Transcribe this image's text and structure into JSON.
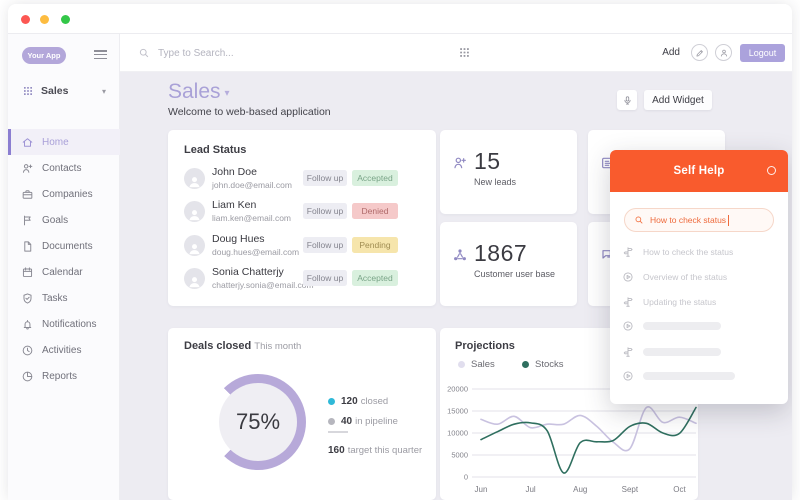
{
  "window": {
    "traffic_lights": [
      "#fc5753",
      "#fdbc40",
      "#33c748"
    ]
  },
  "sidebar": {
    "logo": "Your App",
    "workspace": {
      "label": "Sales",
      "caret": "▾"
    },
    "items": [
      {
        "label": "Home",
        "icon": "#i-home",
        "active": true
      },
      {
        "label": "Contacts",
        "icon": "#i-person-plus"
      },
      {
        "label": "Companies",
        "icon": "#i-briefcase"
      },
      {
        "label": "Goals",
        "icon": "#i-flag"
      },
      {
        "label": "Documents",
        "icon": "#i-doc"
      },
      {
        "label": "Calendar",
        "icon": "#i-cal"
      },
      {
        "label": "Tasks",
        "icon": "#i-shield"
      },
      {
        "label": "Notifications",
        "icon": "#i-bell"
      },
      {
        "label": "Activities",
        "icon": "#i-clock"
      },
      {
        "label": "Reports",
        "icon": "#i-pie"
      }
    ]
  },
  "topbar": {
    "search_placeholder": "Type to Search...",
    "add_label": "Add",
    "logout_label": "Logout"
  },
  "header": {
    "title": "Sales",
    "caret": "▾",
    "subtitle": "Welcome to web-based application",
    "add_widget_label": "Add Widget"
  },
  "lead_status": {
    "title": "Lead Status",
    "rows": [
      {
        "name": "John Doe",
        "email": "john.doe@email.com",
        "action": "Follow up",
        "status": "Accepted",
        "status_class": "pill-btn badge accepted"
      },
      {
        "name": "Liam Ken",
        "email": "liam.ken@email.com",
        "action": "Follow up",
        "status": "Denied",
        "status_class": "pill-btn badge denied"
      },
      {
        "name": "Doug Hues",
        "email": "doug.hues@email.com",
        "action": "Follow up",
        "status": "Pending",
        "status_class": "pill-btn badge pending"
      },
      {
        "name": "Sonia Chatterjy",
        "email": "chatterjy.sonia@email.com",
        "action": "Follow up",
        "status": "Accepted",
        "status_class": "pill-btn badge accepted"
      }
    ]
  },
  "stats": [
    {
      "icon": "#i-person-plus",
      "value": "15",
      "label": "New leads"
    },
    {
      "icon": "#i-network",
      "value": "1867",
      "label": "Customer user base"
    },
    {
      "icon": "#i-idcard",
      "value": "",
      "label": ""
    },
    {
      "icon": "#i-chat",
      "value": "",
      "label": ""
    }
  ],
  "self_help": {
    "title": "Self Help",
    "search_value": "How to check status",
    "items": [
      {
        "icon": "#i-signpost",
        "label": "How to check the status"
      },
      {
        "icon": "#i-play",
        "label": "Overview of the status"
      },
      {
        "icon": "#i-signpost",
        "label": "Updating the status"
      },
      {
        "icon": "#i-play",
        "label": "",
        "bar_style": "width:78px"
      },
      {
        "icon": "#i-signpost",
        "label": "",
        "bar_style": "width:78px"
      },
      {
        "icon": "#i-play",
        "label": "",
        "bar_style": "width:92px"
      }
    ]
  },
  "chart_data": [
    {
      "type": "donut",
      "title": "Deals closed",
      "subtitle": "This month",
      "percent": 75,
      "center_label": "75%",
      "ring_color": "#b7a9d9",
      "legend": [
        {
          "value": "120",
          "label": "closed",
          "color": "#2fb9d8"
        },
        {
          "value": "40",
          "label": "in pipeline",
          "color": "#b6b6be"
        }
      ],
      "target": {
        "value": "160",
        "label": "target this quarter"
      }
    },
    {
      "type": "line",
      "title": "Projections",
      "x_tick_labels": [
        "Jun",
        "Jul",
        "Aug",
        "Sept",
        "Oct"
      ],
      "x_tick_indices": [
        0,
        3,
        6,
        9,
        12
      ],
      "ylim": [
        0,
        20000
      ],
      "yticks": [
        0,
        5000,
        10000,
        15000,
        20000
      ],
      "grid": true,
      "legend_position": "top-left",
      "series": [
        {
          "name": "Sales",
          "color": "#c9c2e0",
          "values": [
            13100,
            12000,
            13800,
            11200,
            12000,
            12000,
            14000,
            11500,
            7900,
            6400,
            15800,
            12400,
            13600,
            12200
          ]
        },
        {
          "name": "Stocks",
          "color": "#2f6f5f",
          "values": [
            8500,
            10300,
            12000,
            12300,
            10500,
            900,
            7800,
            8000,
            8300,
            11500,
            12200,
            10000,
            9900,
            15800
          ]
        }
      ]
    }
  ],
  "colors": {
    "accent_purple": "#a9a1d7",
    "orange": "#f95b2d",
    "content_bg": "#edecf2"
  }
}
